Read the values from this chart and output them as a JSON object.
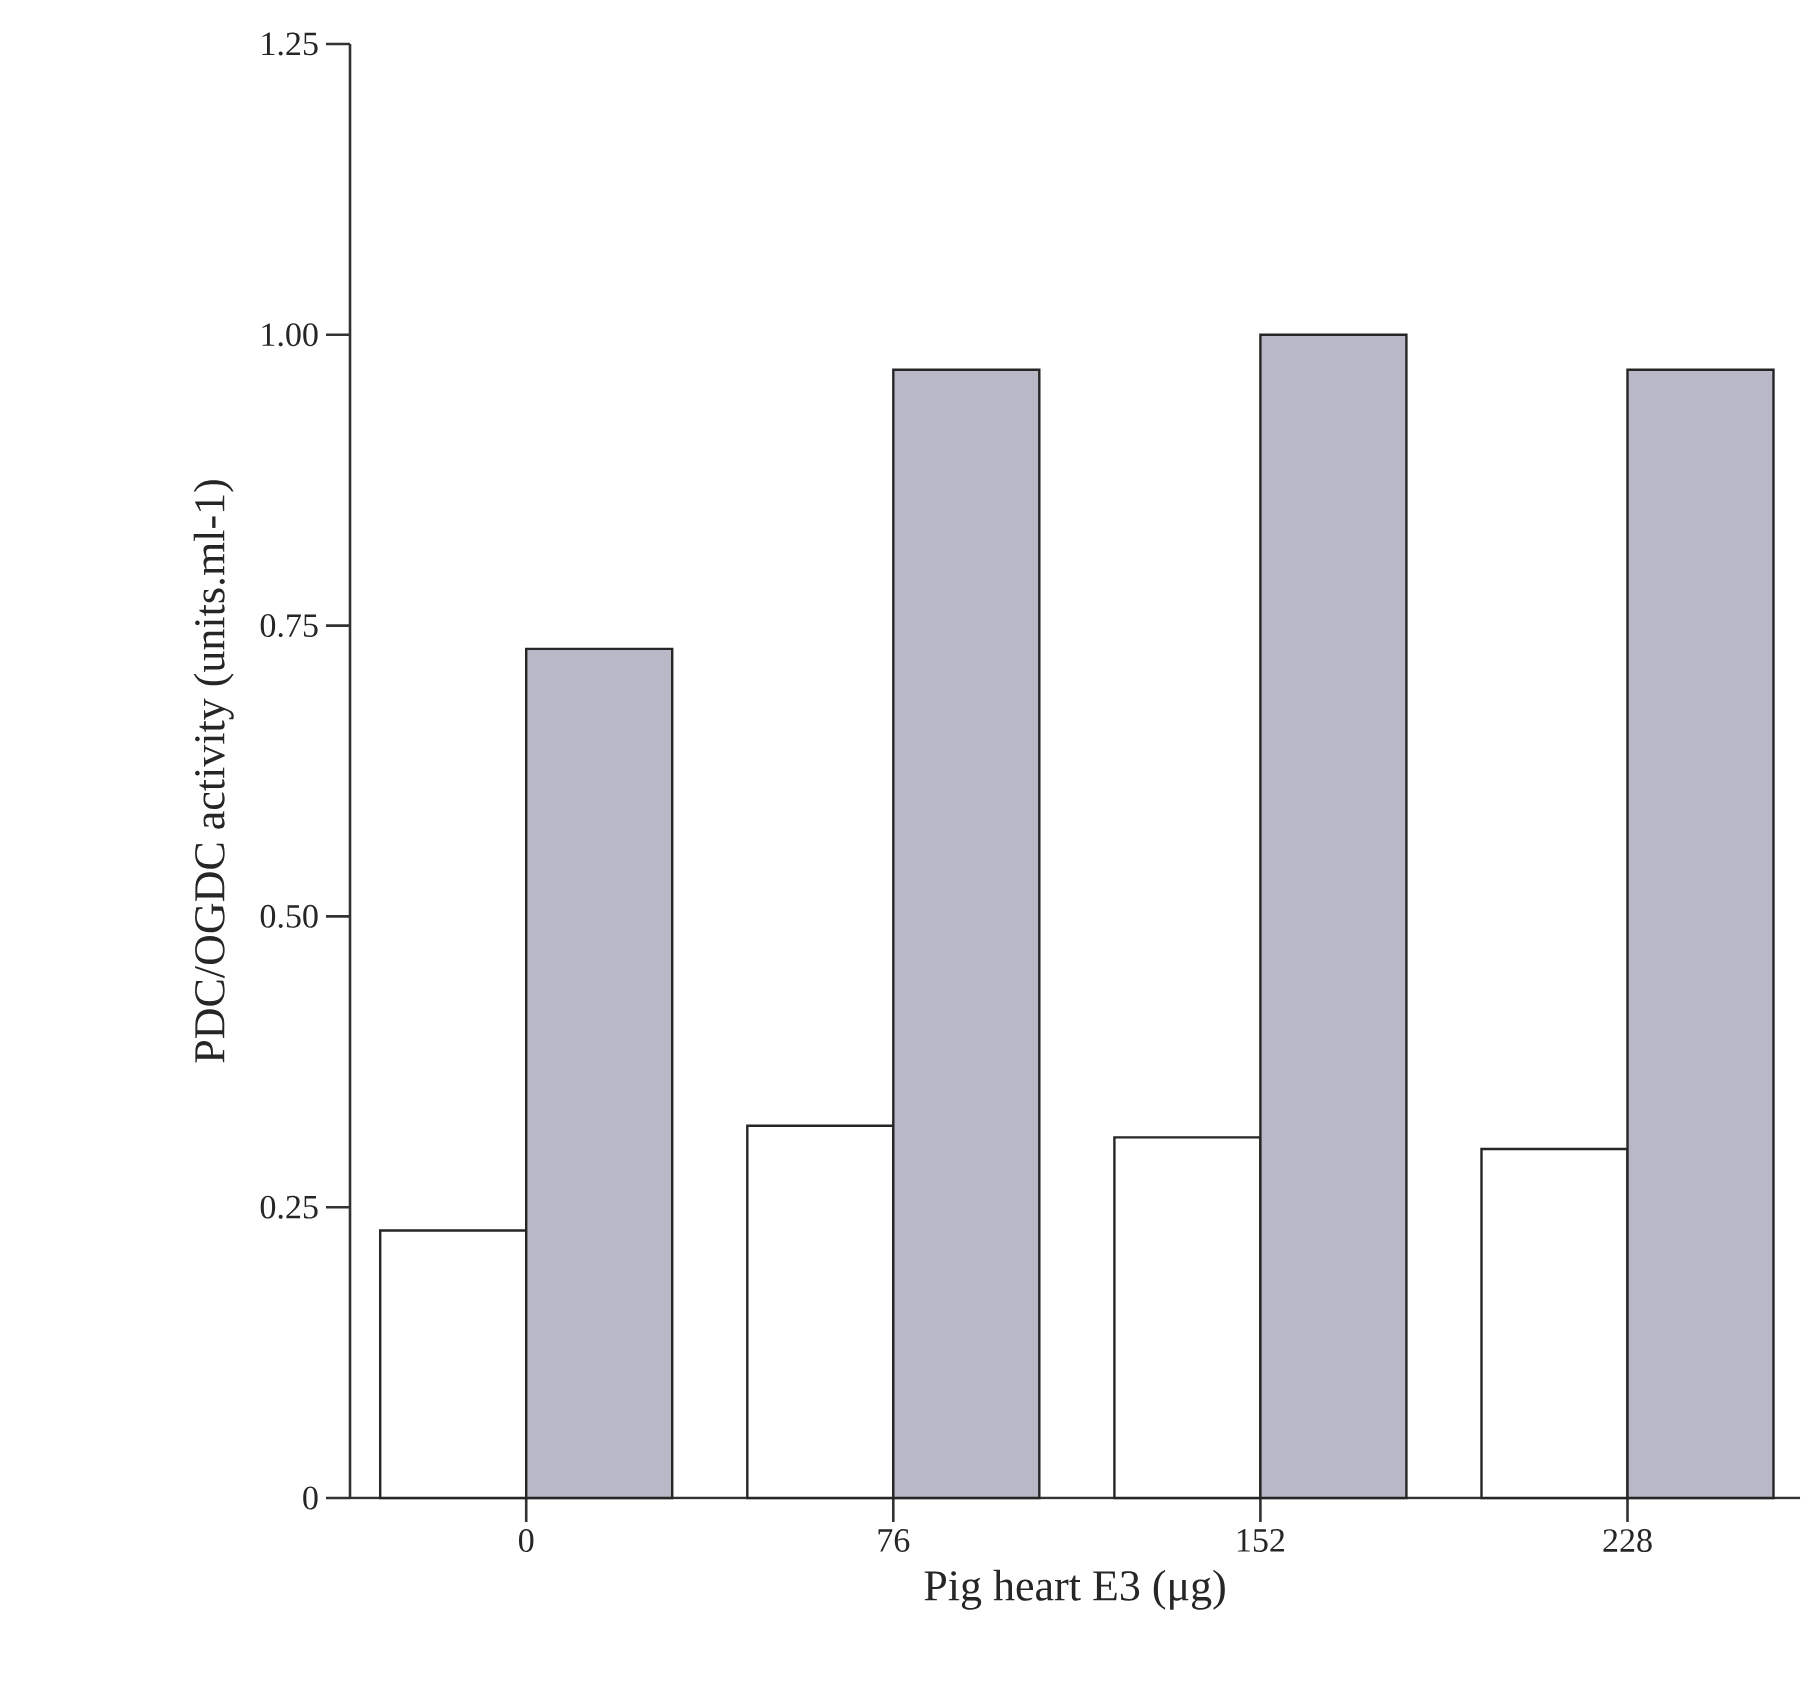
{
  "chart_data": {
    "type": "bar",
    "xlabel": "Pig heart E3 (μg)",
    "ylabel": "PDC/OGDC activity (units.ml-1)",
    "categories": [
      "0",
      "76",
      "152",
      "228"
    ],
    "series": [
      {
        "color": "#ffffff",
        "values": [
          0.23,
          0.32,
          0.31,
          0.3
        ]
      },
      {
        "color": "#b8b8c6",
        "values": [
          0.73,
          0.97,
          1.0,
          0.97
        ]
      }
    ],
    "ylim": [
      0,
      1.25
    ],
    "yticks": [
      {
        "value": 0,
        "label": "0"
      },
      {
        "value": 0.25,
        "label": "0.25"
      },
      {
        "value": 0.5,
        "label": "0.50"
      },
      {
        "value": 0.75,
        "label": "0.75"
      },
      {
        "value": 1,
        "label": "1.00"
      },
      {
        "value": 1.25,
        "label": "1.25"
      }
    ],
    "grid": false
  }
}
